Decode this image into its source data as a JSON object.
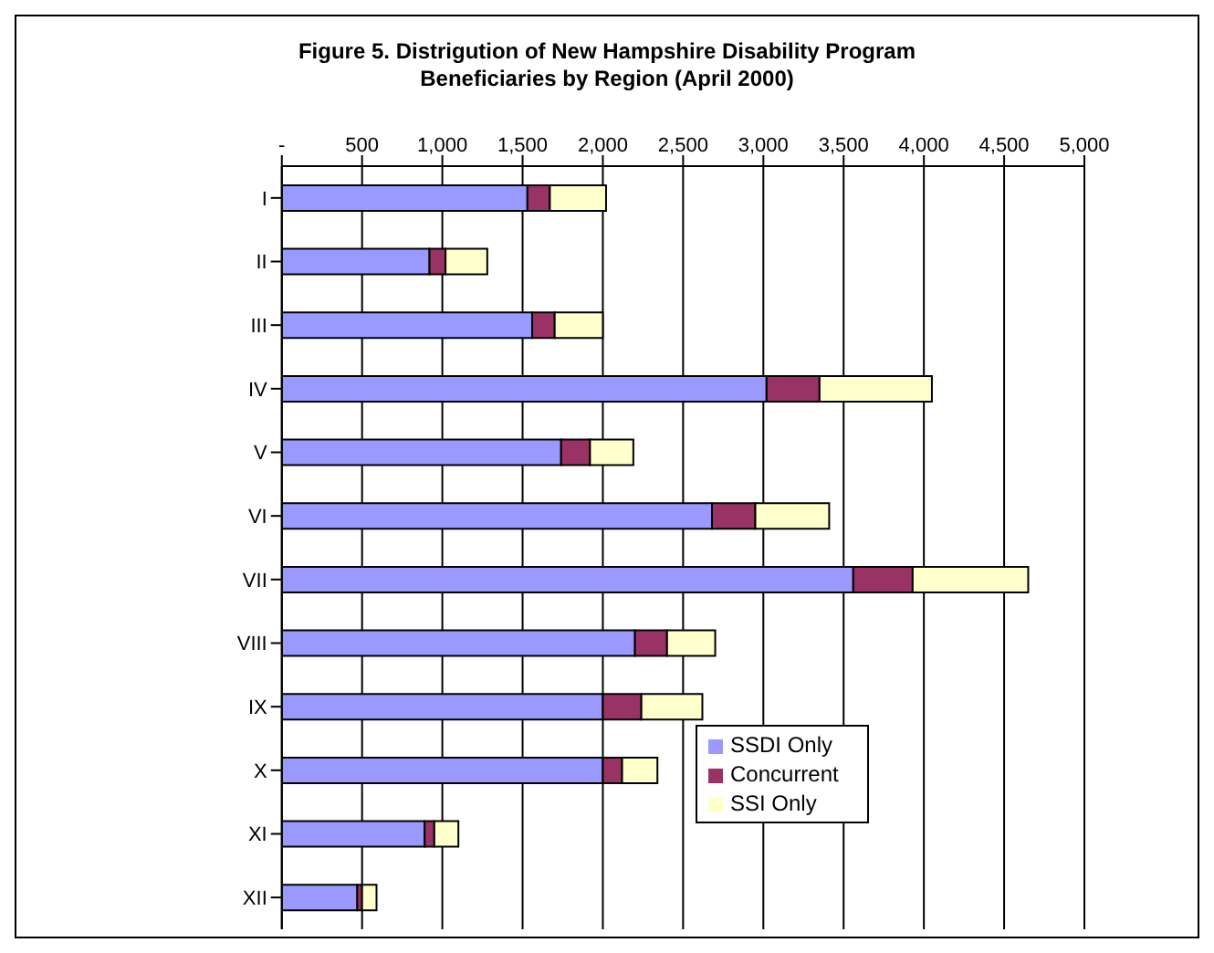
{
  "chart_data": {
    "type": "bar",
    "orientation": "horizontal",
    "stacked": true,
    "title": "Figure 5. Distrigution of New Hampshire Disability Program Beneficiaries by Region (April 2000)",
    "categories": [
      "I",
      "II",
      "III",
      "IV",
      "V",
      "VI",
      "VII",
      "VIII",
      "IX",
      "X",
      "XI",
      "XII"
    ],
    "series": [
      {
        "name": "SSDI Only",
        "color": "#9999ff",
        "values": [
          1530,
          920,
          1560,
          3020,
          1740,
          2680,
          3560,
          2200,
          2000,
          2000,
          890,
          470
        ]
      },
      {
        "name": "Concurrent",
        "color": "#993366",
        "values": [
          140,
          100,
          140,
          330,
          180,
          270,
          370,
          200,
          240,
          120,
          60,
          30
        ]
      },
      {
        "name": "SSI Only",
        "color": "#ffffcc",
        "values": [
          350,
          260,
          300,
          700,
          270,
          460,
          720,
          300,
          380,
          220,
          150,
          90
        ]
      }
    ],
    "xlim": [
      0,
      5000
    ],
    "xticks": [
      {
        "value": 0,
        "label": "-"
      },
      500,
      {
        "value": 1000,
        "label": "1,000"
      },
      {
        "value": 1500,
        "label": "1,500"
      },
      {
        "value": 2000,
        "label": "2,000"
      },
      {
        "value": 2500,
        "label": "2,500"
      },
      {
        "value": 3000,
        "label": "3,000"
      },
      {
        "value": 3500,
        "label": "3,500"
      },
      {
        "value": 4000,
        "label": "4,000"
      },
      {
        "value": 4500,
        "label": "4,500"
      },
      {
        "value": 5000,
        "label": "5,000"
      }
    ],
    "grid": "x",
    "legend": "right"
  }
}
